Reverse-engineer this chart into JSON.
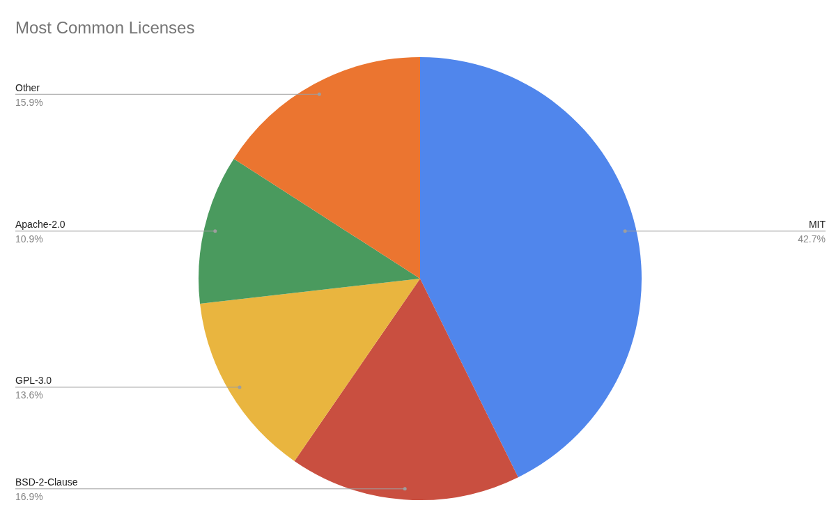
{
  "chart_data": {
    "type": "pie",
    "title": "Most Common Licenses",
    "categories": [
      "MIT",
      "BSD-2-Clause",
      "GPL-3.0",
      "Apache-2.0",
      "Other"
    ],
    "values": [
      42.7,
      16.9,
      13.6,
      10.9,
      15.9
    ],
    "value_labels": [
      "42.7%",
      "16.9%",
      "13.6%",
      "10.9%",
      "15.9%"
    ],
    "colors": [
      "#5086ec",
      "#c94f40",
      "#e9b53f",
      "#4a9a5e",
      "#eb7530"
    ],
    "legend": false
  }
}
